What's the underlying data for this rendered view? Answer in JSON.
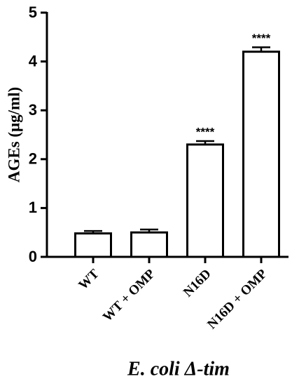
{
  "chart_data": {
    "type": "bar",
    "y_label": "AGEs (μg/ml)",
    "x_label": "E. coli Δ-tim",
    "categories": [
      "WT",
      "WT + OMP",
      "N16D",
      "N16D + OMP"
    ],
    "values": [
      0.48,
      0.5,
      2.3,
      4.2
    ],
    "errors": [
      0.05,
      0.06,
      0.07,
      0.09
    ],
    "annotations": [
      null,
      null,
      "****",
      "****"
    ],
    "color": "#ffffff",
    "ylim": [
      0,
      5
    ],
    "yticks": [
      0,
      1,
      2,
      3,
      4,
      5
    ]
  }
}
